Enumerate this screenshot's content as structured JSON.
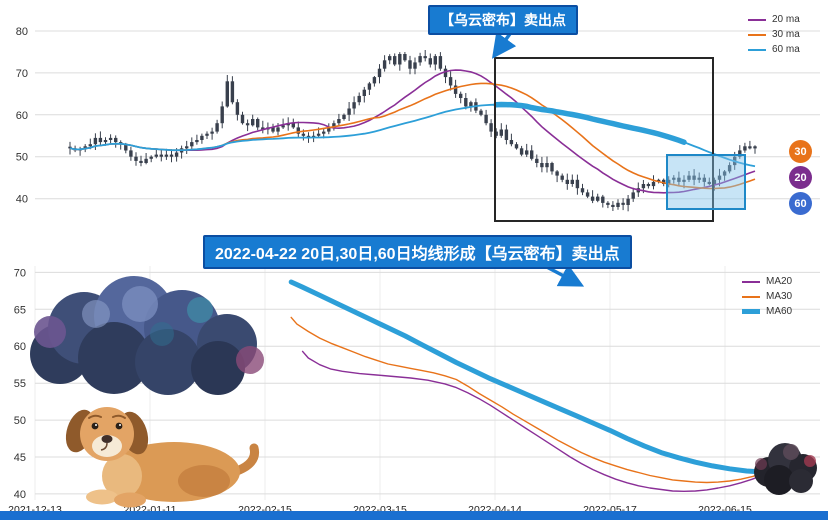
{
  "page": {
    "background": "#ffffff",
    "bottom_bar_color": "#1a6fd0"
  },
  "annotations": {
    "top_callout": "【乌云密布】卖出点",
    "mid_callout": "2022-04-22 20日,30日,60日均线形成【乌云密布】卖出点",
    "callout_bg": "#187bd1",
    "callout_border": "#0b4ea2"
  },
  "chart_data": [
    {
      "id": "daily-candlestick-with-ma",
      "type": "candlestick",
      "title": "",
      "ylim": [
        33,
        85
      ],
      "y_ticks": [
        40,
        50,
        60,
        70,
        80
      ],
      "grid": true,
      "legend_position": "top-right",
      "legend": [
        "20 ma",
        "30 ma",
        "60 ma"
      ],
      "candle_color": "#39404d",
      "closes": [
        52,
        51.5,
        51.8,
        52.5,
        53,
        54.5,
        53.5,
        54,
        54.5,
        53.5,
        53,
        51.5,
        50,
        49,
        48.5,
        49.5,
        50,
        50.5,
        50,
        50.5,
        50,
        51,
        52,
        52.5,
        53.5,
        54,
        55,
        55.5,
        56,
        58,
        62,
        68,
        63,
        60,
        58,
        57.5,
        59,
        57,
        56.5,
        57,
        56,
        57,
        57.5,
        58,
        57,
        55.5,
        55,
        54.5,
        55,
        55.5,
        56,
        57,
        58,
        59,
        60,
        61.5,
        63,
        64.5,
        66,
        67.5,
        69,
        71,
        73,
        74,
        72,
        74.5,
        73,
        71,
        72.5,
        74,
        73.5,
        72,
        74,
        71,
        69,
        67,
        65,
        64,
        62,
        63,
        61,
        60,
        58,
        56,
        55,
        56.5,
        54,
        53,
        52,
        50.5,
        51.5,
        49.5,
        48.5,
        47.5,
        48.5,
        46.5,
        45.5,
        44.5,
        43.5,
        44.5,
        42.5,
        41.5,
        40.5,
        39.5,
        40.5,
        39,
        38.5,
        38,
        39,
        38.5,
        40,
        41.5,
        42.5,
        43.5,
        43,
        44,
        44.5,
        43.5,
        44.5,
        45,
        44,
        44.5,
        45.5,
        44.5,
        45,
        44,
        43.5,
        44.5,
        45.5,
        46.5,
        48,
        50,
        51.5,
        52.5,
        52,
        52.5
      ],
      "ma_series": [
        {
          "name": "20 ma",
          "window": 20,
          "color": "#8a2f97",
          "width": 1.6
        },
        {
          "name": "30 ma",
          "window": 30,
          "color": "#e8731a",
          "width": 1.6
        },
        {
          "name": "60 ma",
          "window": 60,
          "color": "#2d9fd8",
          "width": 1.8
        }
      ],
      "emphasis": {
        "series": "60 ma",
        "from": 84,
        "to": 121,
        "width": 5.5
      },
      "badges": [
        {
          "label": "30",
          "color": "#e8731a"
        },
        {
          "label": "20",
          "color": "#7b2d8e"
        },
        {
          "label": "60",
          "color": "#3a6bd0"
        }
      ]
    },
    {
      "id": "ma-line-chart",
      "type": "line",
      "title": "",
      "ylim": [
        38.5,
        71
      ],
      "y_ticks": [
        40,
        45,
        50,
        55,
        60,
        65,
        70
      ],
      "grid": true,
      "legend_position": "top-right",
      "x_tick_labels": [
        "2021-12-13",
        "2022-01-11",
        "2022-02-15",
        "2022-03-15",
        "2022-04-14",
        "2022-05-17",
        "2022-06-15"
      ],
      "series": [
        {
          "name": "MA20",
          "color": "#8a2f97",
          "width": 1.4,
          "points": [
            [
              47,
              59.3
            ],
            [
              48,
              58.4
            ],
            [
              50,
              57.5
            ],
            [
              52,
              56.9
            ],
            [
              54,
              56.6
            ],
            [
              57,
              56.3
            ],
            [
              60,
              56.1
            ],
            [
              63,
              55.9
            ],
            [
              66,
              55.7
            ],
            [
              69,
              55.4
            ],
            [
              72,
              54.9
            ],
            [
              74,
              54.4
            ],
            [
              76,
              53.7
            ],
            [
              78,
              52.9
            ],
            [
              80,
              52.0
            ],
            [
              82,
              51.0
            ],
            [
              84,
              50.0
            ],
            [
              86,
              49.0
            ],
            [
              88,
              48.0
            ],
            [
              90,
              47.0
            ],
            [
              92,
              46.0
            ],
            [
              94,
              45.0
            ],
            [
              96,
              44.1
            ],
            [
              98,
              43.3
            ],
            [
              100,
              42.6
            ],
            [
              102,
              42.0
            ],
            [
              104,
              41.5
            ],
            [
              106,
              41.1
            ],
            [
              108,
              40.8
            ],
            [
              110,
              40.6
            ],
            [
              112,
              40.4
            ],
            [
              114,
              40.35
            ],
            [
              116,
              40.4
            ],
            [
              118,
              40.55
            ],
            [
              120,
              40.8
            ],
            [
              122,
              41.1
            ],
            [
              124,
              41.5
            ],
            [
              126,
              42.0
            ],
            [
              128,
              42.6
            ],
            [
              130,
              43.3
            ],
            [
              132,
              44.0
            ],
            [
              134,
              44.7
            ]
          ]
        },
        {
          "name": "MA30",
          "color": "#e8731a",
          "width": 1.4,
          "points": [
            [
              45,
              63.9
            ],
            [
              46,
              63.0
            ],
            [
              48,
              62.0
            ],
            [
              50,
              61.1
            ],
            [
              52,
              60.4
            ],
            [
              54,
              59.8
            ],
            [
              56,
              59.2
            ],
            [
              58,
              58.6
            ],
            [
              60,
              58.1
            ],
            [
              62,
              57.6
            ],
            [
              64,
              57.3
            ],
            [
              66,
              57.0
            ],
            [
              68,
              56.7
            ],
            [
              70,
              56.4
            ],
            [
              72,
              56.0
            ],
            [
              74,
              55.5
            ],
            [
              76,
              54.6
            ],
            [
              78,
              53.6
            ],
            [
              80,
              52.7
            ],
            [
              82,
              51.8
            ],
            [
              84,
              50.8
            ],
            [
              86,
              49.9
            ],
            [
              88,
              49.0
            ],
            [
              90,
              48.1
            ],
            [
              92,
              47.2
            ],
            [
              94,
              46.4
            ],
            [
              96,
              45.6
            ],
            [
              98,
              44.9
            ],
            [
              100,
              44.3
            ],
            [
              102,
              43.8
            ],
            [
              104,
              43.3
            ],
            [
              106,
              42.9
            ],
            [
              108,
              42.5
            ],
            [
              110,
              42.2
            ],
            [
              112,
              41.9
            ],
            [
              114,
              41.75
            ],
            [
              116,
              41.6
            ],
            [
              118,
              41.55
            ],
            [
              120,
              41.6
            ],
            [
              122,
              41.75
            ],
            [
              124,
              42.0
            ],
            [
              126,
              42.35
            ],
            [
              128,
              42.8
            ],
            [
              130,
              43.2
            ],
            [
              132,
              43.7
            ],
            [
              134,
              44.1
            ]
          ]
        },
        {
          "name": "MA60",
          "color": "#2d9fd8",
          "width": 5,
          "points": [
            [
              45,
              68.7
            ],
            [
              47,
              68.0
            ],
            [
              50,
              66.9
            ],
            [
              53,
              65.8
            ],
            [
              56,
              64.7
            ],
            [
              59,
              63.6
            ],
            [
              62,
              62.5
            ],
            [
              65,
              61.4
            ],
            [
              68,
              60.2
            ],
            [
              71,
              59.0
            ],
            [
              74,
              57.8
            ],
            [
              77,
              56.7
            ],
            [
              80,
              55.6
            ],
            [
              83,
              54.6
            ],
            [
              86,
              53.6
            ],
            [
              89,
              52.6
            ],
            [
              92,
              51.6
            ],
            [
              95,
              50.6
            ],
            [
              98,
              49.6
            ],
            [
              101,
              48.6
            ],
            [
              104,
              47.5
            ],
            [
              107,
              46.5
            ],
            [
              110,
              45.6
            ],
            [
              113,
              44.9
            ],
            [
              116,
              44.3
            ],
            [
              119,
              43.8
            ],
            [
              122,
              43.4
            ],
            [
              125,
              43.1
            ],
            [
              128,
              42.95
            ],
            [
              131,
              42.9
            ],
            [
              134,
              43.0
            ]
          ]
        }
      ]
    }
  ]
}
